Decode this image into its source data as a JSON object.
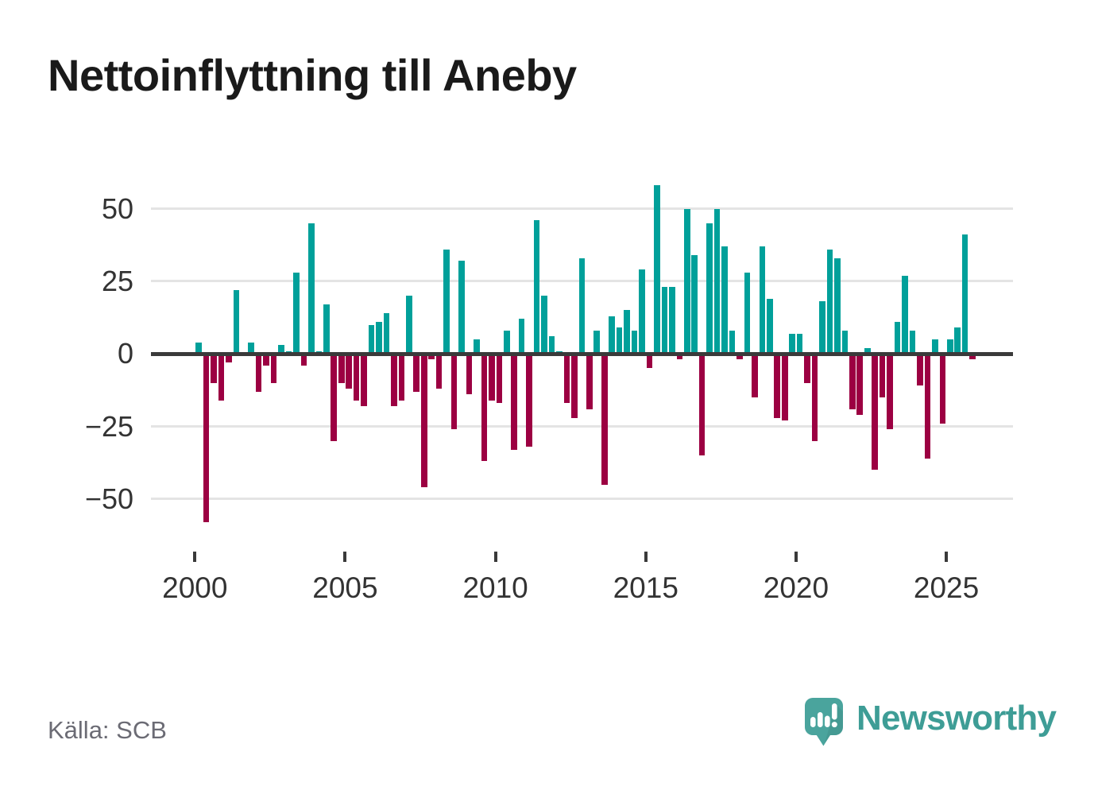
{
  "header": {
    "title": "Nettoinflyttning till Aneby"
  },
  "chart_data": {
    "type": "bar",
    "title": "Nettoinflyttning till Aneby",
    "frequency": "quarterly",
    "grid": "horizontal",
    "positive_color": "#00a09a",
    "negative_color": "#9c0042",
    "zero_line_color": "#3a3a3a",
    "ylim": [
      -62,
      62
    ],
    "y_tick_values": [
      50,
      25,
      0,
      -25,
      -50
    ],
    "y_tick_labels": [
      "50",
      "25",
      "0",
      "−25",
      "−50"
    ],
    "x_tick_labels": [
      "2000",
      "2005",
      "2010",
      "2015",
      "2020",
      "2025"
    ],
    "x_tick_quarter_index": [
      0,
      20,
      40,
      60,
      80,
      100
    ],
    "x": [
      "2000Q1",
      "2000Q2",
      "2000Q3",
      "2000Q4",
      "2001Q1",
      "2001Q2",
      "2001Q3",
      "2001Q4",
      "2002Q1",
      "2002Q2",
      "2002Q3",
      "2002Q4",
      "2003Q1",
      "2003Q2",
      "2003Q3",
      "2003Q4",
      "2004Q1",
      "2004Q2",
      "2004Q3",
      "2004Q4",
      "2005Q1",
      "2005Q2",
      "2005Q3",
      "2005Q4",
      "2006Q1",
      "2006Q2",
      "2006Q3",
      "2006Q4",
      "2007Q1",
      "2007Q2",
      "2007Q3",
      "2007Q4",
      "2008Q1",
      "2008Q2",
      "2008Q3",
      "2008Q4",
      "2009Q1",
      "2009Q2",
      "2009Q3",
      "2009Q4",
      "2010Q1",
      "2010Q2",
      "2010Q3",
      "2010Q4",
      "2011Q1",
      "2011Q2",
      "2011Q3",
      "2011Q4",
      "2012Q1",
      "2012Q2",
      "2012Q3",
      "2012Q4",
      "2013Q1",
      "2013Q2",
      "2013Q3",
      "2013Q4",
      "2014Q1",
      "2014Q2",
      "2014Q3",
      "2014Q4",
      "2015Q1",
      "2015Q2",
      "2015Q3",
      "2015Q4",
      "2016Q1",
      "2016Q2",
      "2016Q3",
      "2016Q4",
      "2017Q1",
      "2017Q2",
      "2017Q3",
      "2017Q4",
      "2018Q1",
      "2018Q2",
      "2018Q3",
      "2018Q4",
      "2019Q1",
      "2019Q2",
      "2019Q3",
      "2019Q4",
      "2020Q1",
      "2020Q2",
      "2020Q3",
      "2020Q4",
      "2021Q1",
      "2021Q2",
      "2021Q3",
      "2021Q4",
      "2022Q1",
      "2022Q2",
      "2022Q3",
      "2022Q4",
      "2023Q1",
      "2023Q2",
      "2023Q3",
      "2023Q4",
      "2024Q1",
      "2024Q2",
      "2024Q3",
      "2024Q4",
      "2025Q1",
      "2025Q2",
      "2025Q3",
      "2025Q4"
    ],
    "values": [
      4,
      -58,
      -10,
      -16,
      -3,
      22,
      0,
      4,
      -13,
      -4,
      -10,
      3,
      1,
      28,
      -4,
      45,
      1,
      17,
      -30,
      -10,
      -12,
      -16,
      -18,
      10,
      11,
      14,
      -18,
      -16,
      20,
      -13,
      -46,
      -2,
      -12,
      36,
      -26,
      32,
      -14,
      5,
      -37,
      -16,
      -17,
      8,
      -33,
      12,
      -32,
      46,
      20,
      6,
      1,
      -17,
      -22,
      33,
      -19,
      8,
      -45,
      13,
      9,
      15,
      8,
      29,
      -5,
      58,
      23,
      23,
      -2,
      50,
      34,
      -35,
      45,
      50,
      37,
      8,
      -2,
      28,
      -15,
      37,
      19,
      -22,
      -23,
      7,
      7,
      -10,
      -30,
      18,
      36,
      33,
      8,
      -19,
      -21,
      2,
      -40,
      -15,
      -26,
      11,
      27,
      8,
      -11,
      -36,
      5,
      -24,
      5,
      9,
      41,
      -2
    ]
  },
  "footer": {
    "source": "Källa: SCB",
    "brand": "Newsworthy"
  }
}
